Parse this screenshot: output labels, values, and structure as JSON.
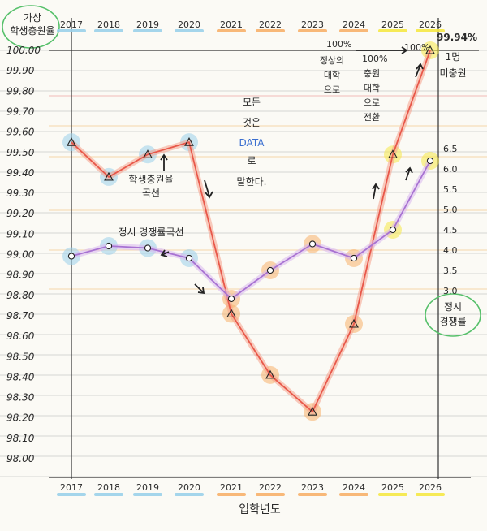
{
  "chart_data": {
    "type": "line",
    "corner_label": [
      "가상",
      "학생충원율"
    ],
    "top_years": [
      "2017",
      "2018",
      "2019",
      "2020",
      "2021",
      "2022",
      "2023",
      "2024",
      "2025",
      "2026"
    ],
    "bottom_years": [
      "2017",
      "2018",
      "2019",
      "2020",
      "2021",
      "2022",
      "2023",
      "2024",
      "2025",
      "2026"
    ],
    "xlabel": "입학년도",
    "left_ticks": [
      "100.00",
      "99.90",
      "99.80",
      "99.70",
      "99.60",
      "99.50",
      "99.40",
      "99.30",
      "99.20",
      "99.10",
      "99.00",
      "98.90",
      "98.80",
      "98.70",
      "98.60",
      "98.50",
      "98.40",
      "98.30",
      "98.20",
      "98.10",
      "98.00"
    ],
    "left_ylim": [
      98.0,
      100.0
    ],
    "right_ticks": [
      "6.5",
      "6.0",
      "5.5",
      "5.0",
      "4.5",
      "4.0",
      "3.5",
      "3.0"
    ],
    "right_ylim": [
      3.0,
      6.5
    ],
    "right_label": [
      "정시",
      "경쟁률"
    ],
    "series": [
      {
        "name": "학생충원율 곡선",
        "axis": "left",
        "color": "#e8584a",
        "values": [
          99.55,
          99.38,
          99.49,
          99.55,
          98.71,
          98.41,
          98.23,
          98.66,
          99.49,
          100.0
        ]
      },
      {
        "name": "정시 경쟁률 곡선",
        "axis": "right",
        "color": "#a872d2",
        "values": [
          3.85,
          4.1,
          4.05,
          3.8,
          2.8,
          3.5,
          4.15,
          3.8,
          4.5,
          6.2
        ]
      }
    ],
    "annotations": {
      "peak_value": "99.94%",
      "one_person": [
        "1명",
        "미충원"
      ],
      "pct_100_a": "100%",
      "pct_100_b": "100%",
      "pct_100_c": "100%",
      "note_2023": [
        "정상의",
        "대학",
        "으로"
      ],
      "note_2024": [
        "충원",
        "대학",
        "으로",
        "전환"
      ],
      "data_says": [
        "모든",
        "것은",
        "DATA",
        "로",
        "말한다."
      ],
      "curve_label_fill": [
        "학생충원율",
        "곡선"
      ],
      "curve_label_comp": "정시 경쟁률곡선"
    },
    "grid": true,
    "legend": "none"
  },
  "colors": {
    "paper": "#fbfaf5",
    "rule": "#c9c9c9",
    "orange_rule": "#f4c88a",
    "pink_rule": "#ef9f9f",
    "fill_line": "#e8584a",
    "comp_line": "#a872d2",
    "yellow_hl": "#f5e845",
    "orange_hl": "#f7b06a",
    "blue_hl": "#9ad0ea",
    "green_hl": "#b6e069"
  }
}
